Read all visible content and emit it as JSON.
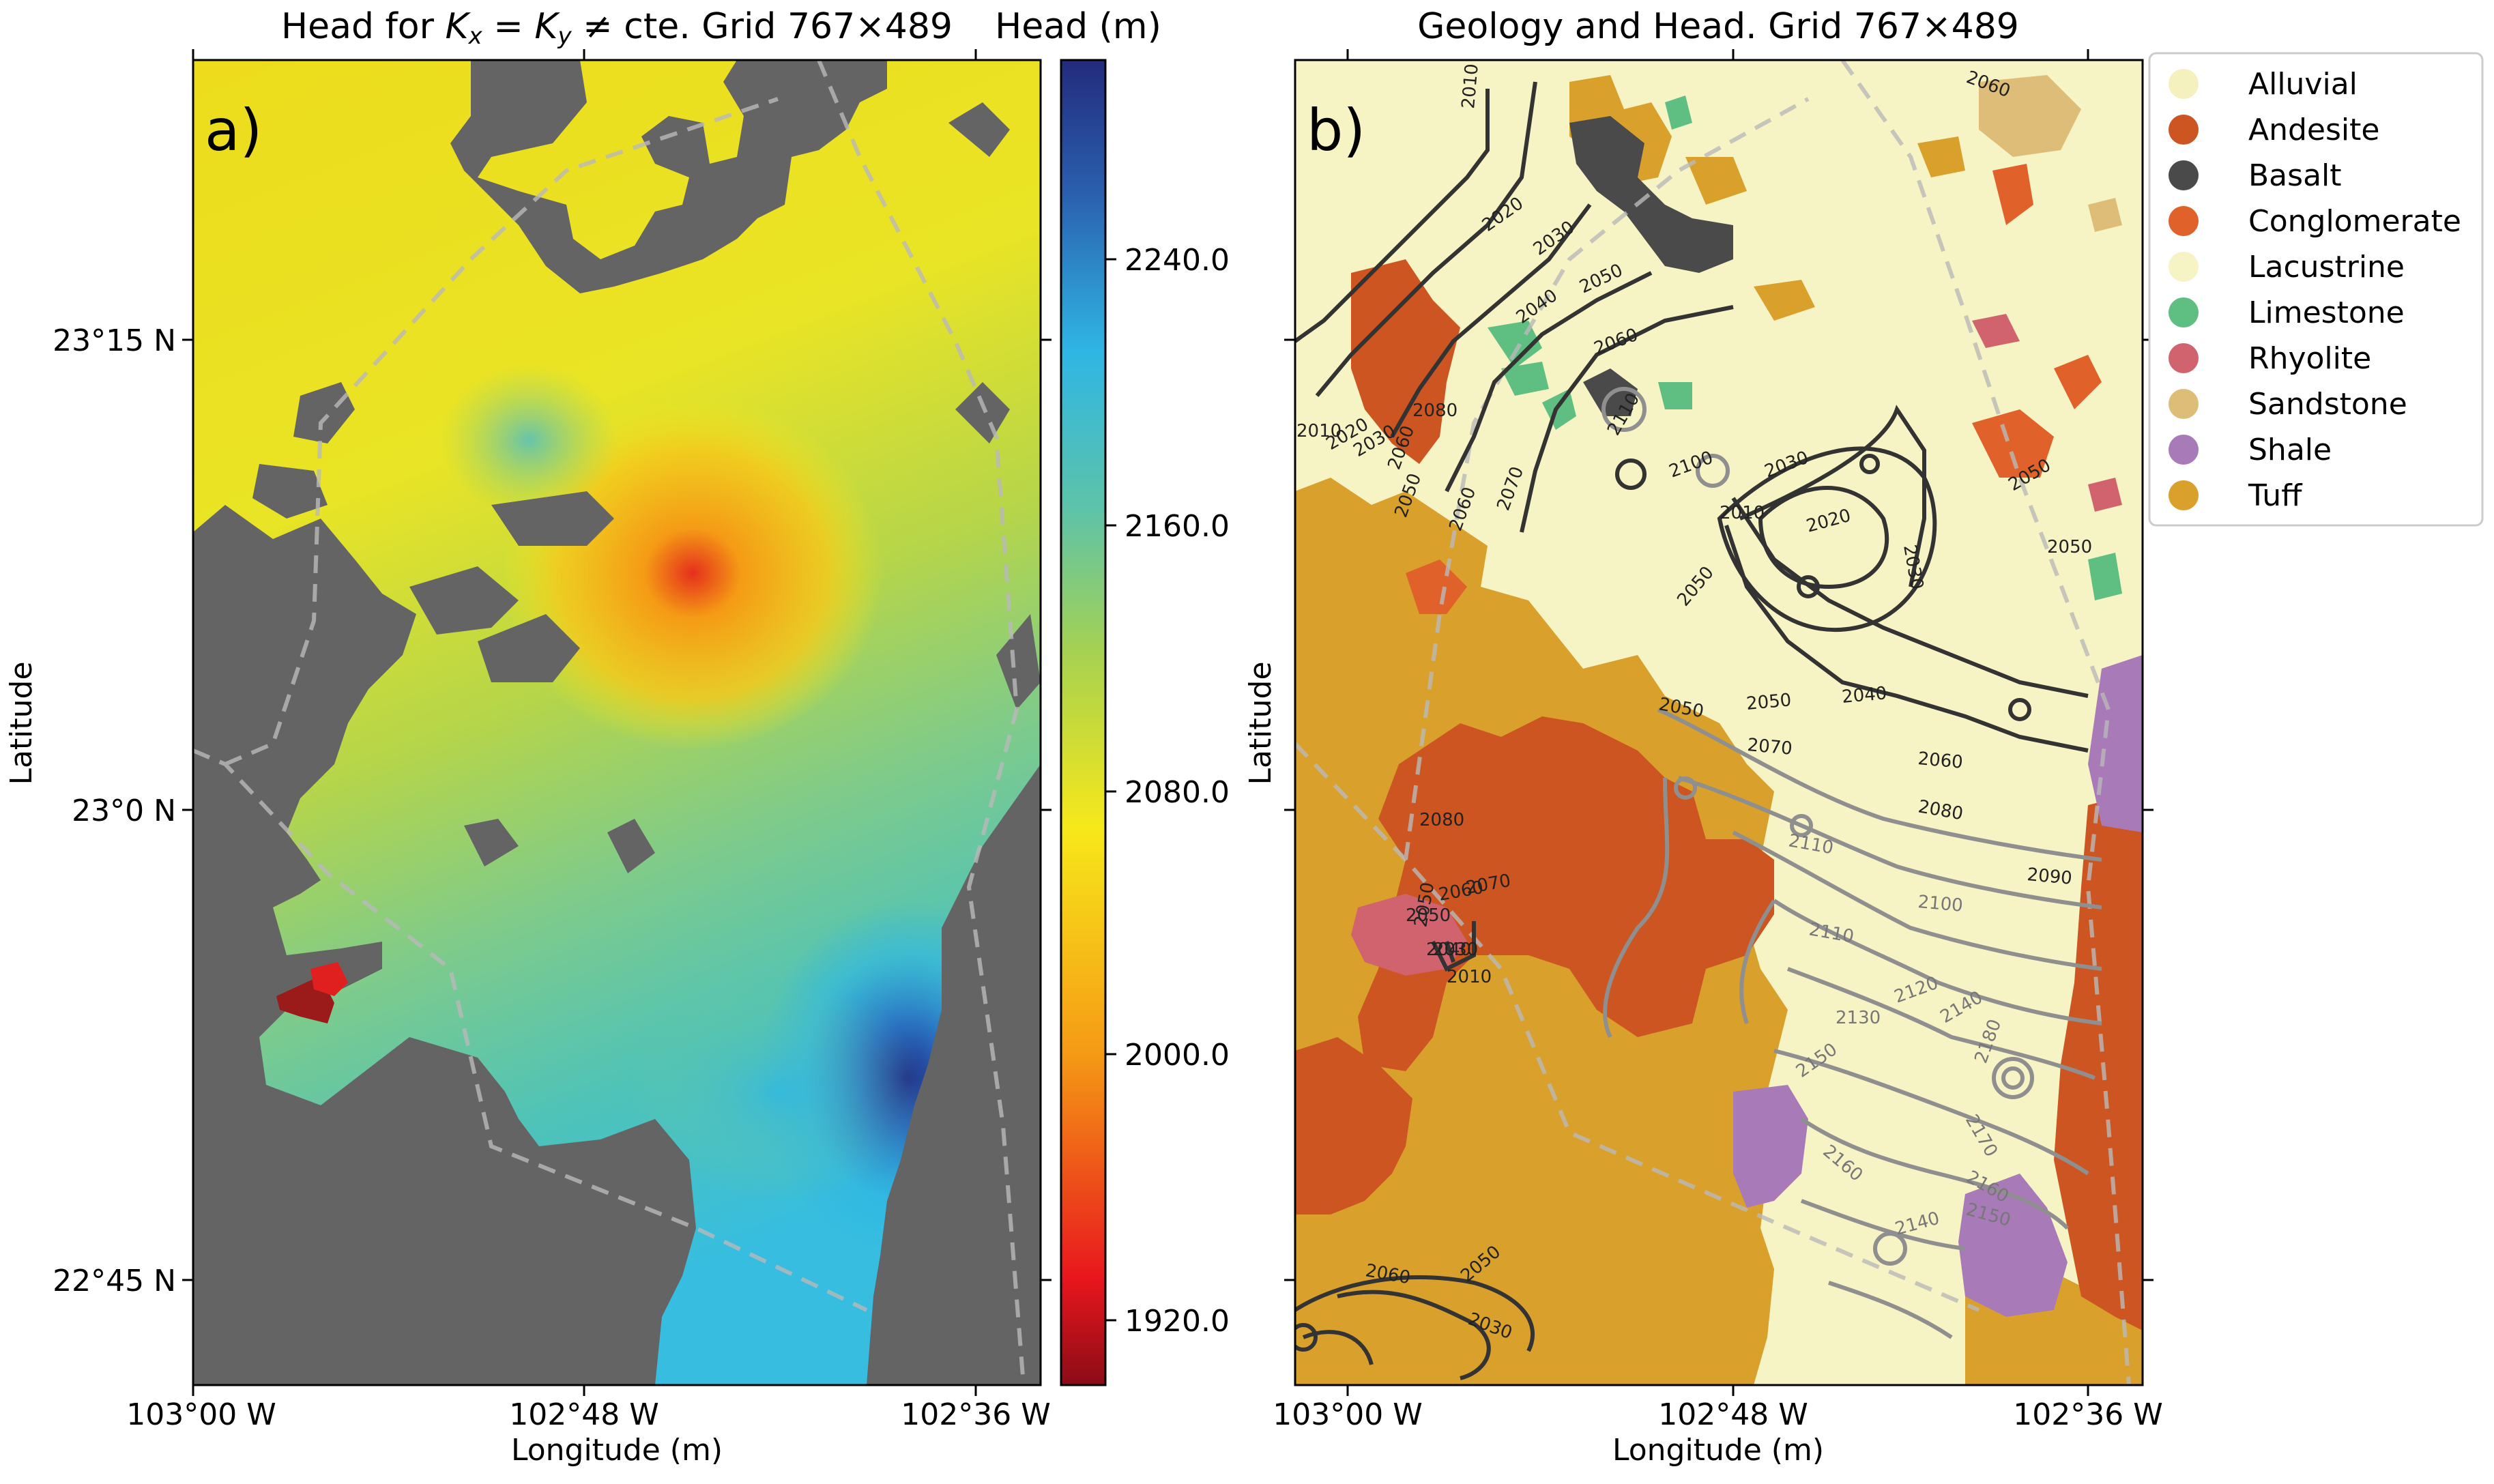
{
  "panel_a": {
    "title_prefix": "Head for ",
    "title_math": "K",
    "title_sub_x": "x",
    "title_eq": " = ",
    "title_sub_y": "y",
    "title_neq": " ≠ cte. Grid 767×489",
    "letter": "a)",
    "xlabel": "Longitude (m)",
    "ylabel": "Latitude",
    "xticks": [
      "103°00 W",
      "102°48 W",
      "102°36 W"
    ],
    "yticks": [
      "23°15 N",
      "23°0 N",
      "22°45 N"
    ]
  },
  "colorbar": {
    "title": "Head (m)",
    "ticks": [
      "2240.0",
      "2160.0",
      "2080.0",
      "2000.0",
      "1920.0"
    ],
    "range": [
      1900,
      2280
    ],
    "colors": [
      "#8b0c17",
      "#e8161d",
      "#f59a15",
      "#f7e81a",
      "#a8d24f",
      "#5ec3a8",
      "#2fb6e4",
      "#2a5fae",
      "#232b7d"
    ]
  },
  "panel_b": {
    "title": "Geology and Head. Grid 767×489",
    "letter": "b)",
    "xlabel": "Longitude (m)",
    "ylabel": "Latitude",
    "xticks": [
      "103°00 W",
      "102°48 W",
      "102°36 W"
    ],
    "yticks": [
      "23°15 N",
      "23°0 N",
      "22°45 N"
    ],
    "contour_labels_dark": [
      "2010",
      "2020",
      "2030",
      "2040",
      "2050",
      "2060",
      "2060",
      "2080",
      "2010",
      "2020",
      "2030",
      "2050",
      "2060",
      "2070",
      "2100",
      "2110",
      "2050",
      "2030",
      "2010",
      "2020",
      "2030",
      "2050",
      "2040",
      "2050",
      "2070",
      "2060",
      "2080",
      "2090",
      "2050",
      "2050",
      "2060",
      "2050",
      "2030",
      "2010",
      "2060",
      "2050",
      "2030",
      "2070",
      "2060",
      "2050",
      "2040",
      "2080"
    ],
    "contour_labels_light": [
      "2100",
      "2110",
      "2120",
      "2130",
      "2140",
      "2150",
      "2160",
      "2170",
      "2160",
      "2150",
      "2140",
      "2180",
      "2110"
    ]
  },
  "legend": {
    "items": [
      {
        "label": "Alluvial",
        "color": "#f5f1bf"
      },
      {
        "label": "Andesite",
        "color": "#cc5522"
      },
      {
        "label": "Basalt",
        "color": "#4a4a4a"
      },
      {
        "label": "Conglomerate",
        "color": "#e0622a"
      },
      {
        "label": "Lacustrine",
        "color": "#f6f3c4"
      },
      {
        "label": "Limestone",
        "color": "#5fbf82"
      },
      {
        "label": "Rhyolite",
        "color": "#d0636e"
      },
      {
        "label": "Sandstone",
        "color": "#debd78"
      },
      {
        "label": "Shale",
        "color": "#a87ab8"
      },
      {
        "label": "Tuff",
        "color": "#d9a02c"
      }
    ]
  }
}
